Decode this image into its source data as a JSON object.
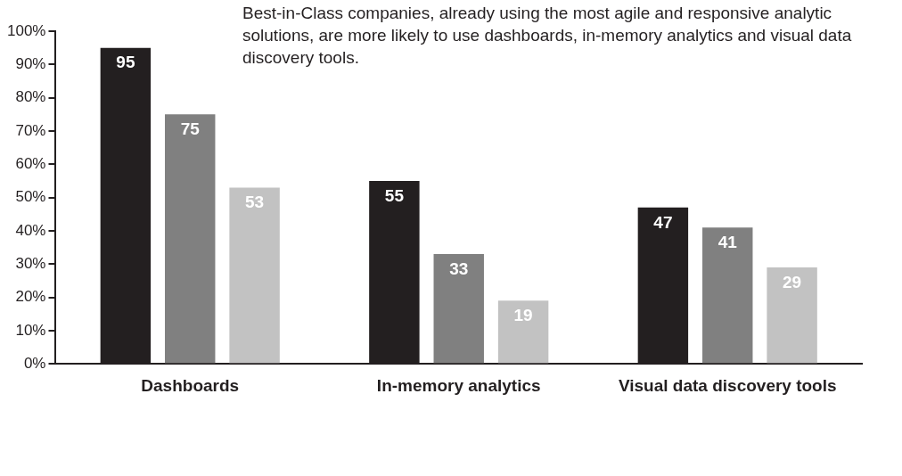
{
  "chart_data": {
    "type": "bar",
    "categories": [
      "Dashboards",
      "In-memory analytics",
      "Visual data discovery tools"
    ],
    "series": [
      {
        "color": "#231f20",
        "values": [
          95,
          55,
          47
        ]
      },
      {
        "color": "#808080",
        "values": [
          75,
          33,
          41
        ]
      },
      {
        "color": "#c2c2c2",
        "values": [
          53,
          19,
          29
        ]
      }
    ],
    "ylim": [
      0,
      100
    ],
    "yticks": [
      {
        "value": 0,
        "label": "0%"
      },
      {
        "value": 10,
        "label": "10%"
      },
      {
        "value": 20,
        "label": "20%"
      },
      {
        "value": 30,
        "label": "30%"
      },
      {
        "value": 40,
        "label": "40%"
      },
      {
        "value": 50,
        "label": "50%"
      },
      {
        "value": 60,
        "label": "60%"
      },
      {
        "value": 70,
        "label": "70%"
      },
      {
        "value": 80,
        "label": "80%"
      },
      {
        "value": 90,
        "label": "90%"
      },
      {
        "value": 100,
        "label": "100%"
      }
    ],
    "annotations": [
      "Best-in-Class companies, already using the most agile and responsive analytic solutions, are more likely to use dashboards, in-memory analytics and visual data discovery tools."
    ],
    "data_labels": true,
    "grid": false,
    "legend": false
  }
}
